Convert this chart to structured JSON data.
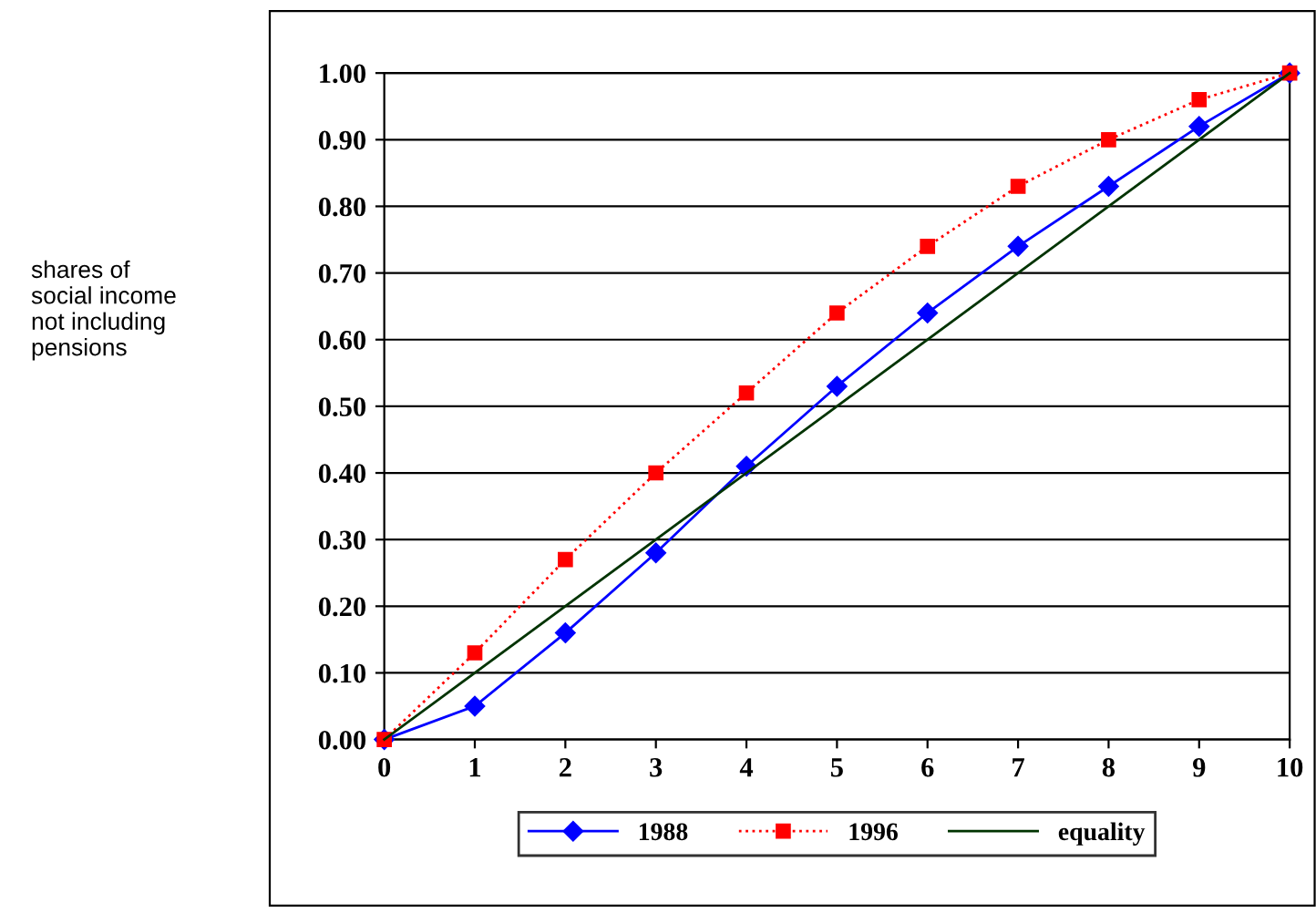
{
  "chart_data": {
    "type": "line",
    "annotations": [
      "shares of\nsocial income\nnot including\npensions"
    ],
    "x": [
      0,
      1,
      2,
      3,
      4,
      5,
      6,
      7,
      8,
      9,
      10
    ],
    "series": [
      {
        "name": "1988",
        "color": "#0000ff",
        "marker": "diamond",
        "line_style": "solid",
        "values": [
          0,
          0.05,
          0.16,
          0.28,
          0.41,
          0.53,
          0.64,
          0.74,
          0.83,
          0.92,
          1.0
        ]
      },
      {
        "name": "1996",
        "color": "#ff0000",
        "marker": "square",
        "line_style": "dotted",
        "values": [
          0,
          0.13,
          0.27,
          0.4,
          0.52,
          0.64,
          0.74,
          0.83,
          0.9,
          0.96,
          1.0
        ]
      },
      {
        "name": "equality",
        "color": "#003300",
        "marker": "none",
        "line_style": "solid",
        "x": [
          0,
          10
        ],
        "values": [
          0,
          1
        ]
      }
    ],
    "xlim": [
      0,
      10
    ],
    "xticks": [
      0,
      1,
      2,
      3,
      4,
      5,
      6,
      7,
      8,
      9,
      10
    ],
    "ylim": [
      0,
      1
    ],
    "yticks": [
      {
        "value": 0,
        "label": "0.00"
      },
      {
        "value": 0.1,
        "label": "0.10"
      },
      {
        "value": 0.2,
        "label": "0.20"
      },
      {
        "value": 0.3,
        "label": "0.30"
      },
      {
        "value": 0.4,
        "label": "0.40"
      },
      {
        "value": 0.5,
        "label": "0.50"
      },
      {
        "value": 0.6,
        "label": "0.60"
      },
      {
        "value": 0.7,
        "label": "0.70"
      },
      {
        "value": 0.8,
        "label": "0.80"
      },
      {
        "value": 0.9,
        "label": "0.90"
      },
      {
        "value": 1,
        "label": "1.00"
      }
    ],
    "grid": "y",
    "legend": "bottom"
  }
}
